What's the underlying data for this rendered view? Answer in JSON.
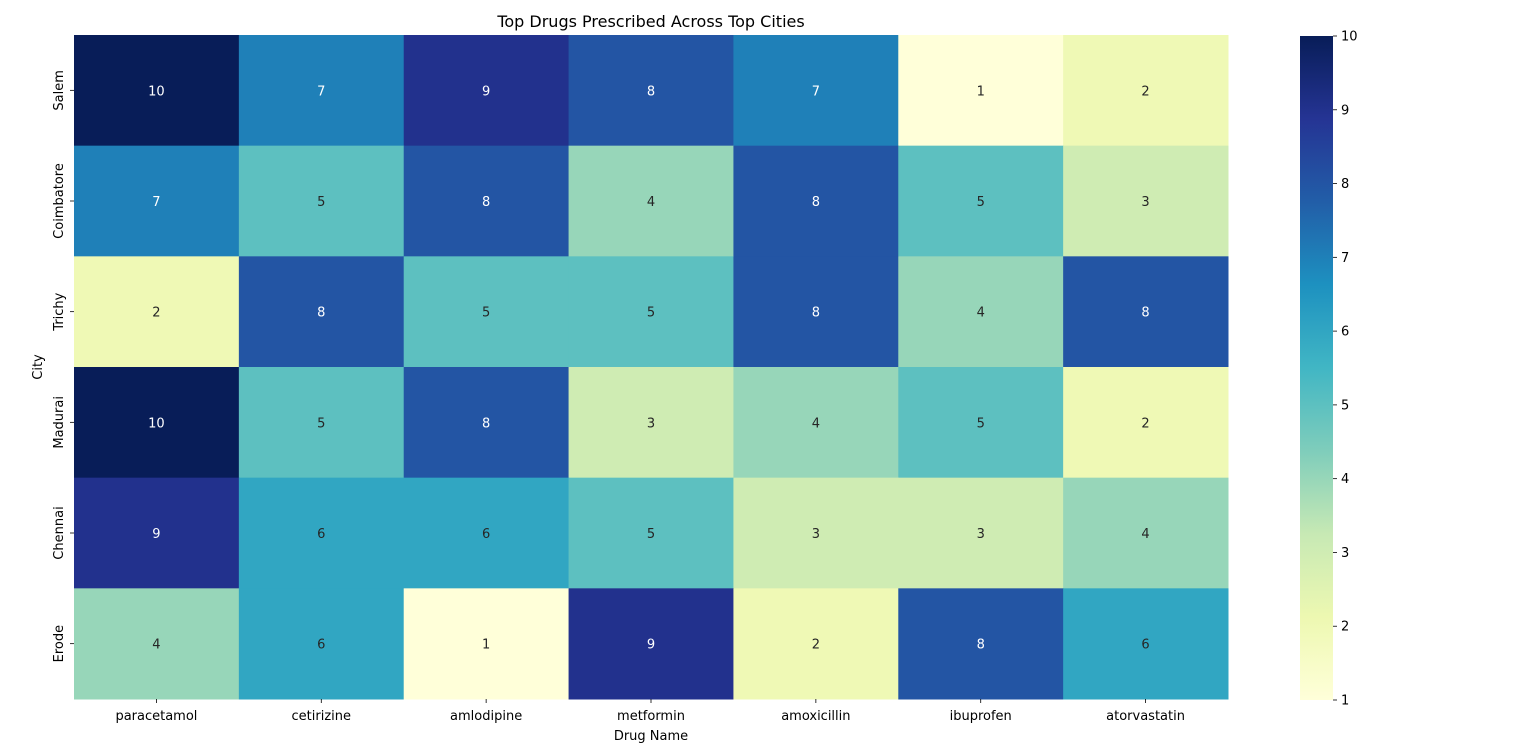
{
  "chart_data": {
    "type": "heatmap",
    "title": "Top Drugs Prescribed Across Top Cities",
    "xlabel": "Drug Name",
    "ylabel": "City",
    "x_categories": [
      "paracetamol",
      "cetirizine",
      "amlodipine",
      "metformin",
      "amoxicillin",
      "ibuprofen",
      "atorvastatin"
    ],
    "y_categories": [
      "Salem",
      "Coimbatore",
      "Trichy",
      "Madurai",
      "Chennai",
      "Erode"
    ],
    "values": [
      [
        10,
        7,
        9,
        8,
        7,
        1,
        2
      ],
      [
        7,
        5,
        8,
        4,
        8,
        5,
        3
      ],
      [
        2,
        8,
        5,
        5,
        8,
        4,
        8
      ],
      [
        10,
        5,
        8,
        3,
        4,
        5,
        2
      ],
      [
        9,
        6,
        6,
        5,
        3,
        3,
        4
      ],
      [
        4,
        6,
        1,
        9,
        2,
        8,
        6
      ]
    ],
    "colorbar": {
      "min": 1,
      "max": 10,
      "ticks": [
        1,
        2,
        3,
        4,
        5,
        6,
        7,
        8,
        9,
        10
      ]
    },
    "colormap": "YlGnBu",
    "annotations": true
  }
}
